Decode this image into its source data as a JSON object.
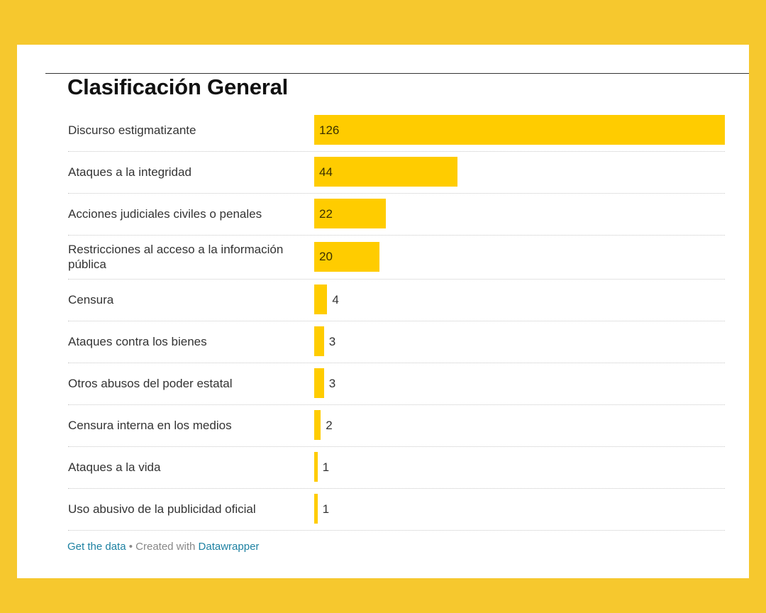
{
  "colors": {
    "background": "#f6c82e",
    "bar": "#ffcc00",
    "link": "#1d81a2"
  },
  "chart_data": {
    "type": "bar",
    "orientation": "horizontal",
    "title": "Clasificación General",
    "categories": [
      "Discurso estigmatizante",
      "Ataques a la integridad",
      "Acciones judiciales civiles o penales",
      "Restricciones al acceso a la información pública",
      "Censura",
      "Ataques contra los bienes",
      "Otros abusos del poder estatal",
      "Censura interna en los medios",
      "Ataques a la vida",
      "Uso abusivo de la publicidad oficial"
    ],
    "values": [
      126,
      44,
      22,
      20,
      4,
      3,
      3,
      2,
      1,
      1
    ],
    "xlim": [
      0,
      126
    ],
    "grid": false,
    "legend": "none"
  },
  "footer": {
    "get_data": "Get the data",
    "separator": " • Created with ",
    "tool": "Datawrapper"
  }
}
